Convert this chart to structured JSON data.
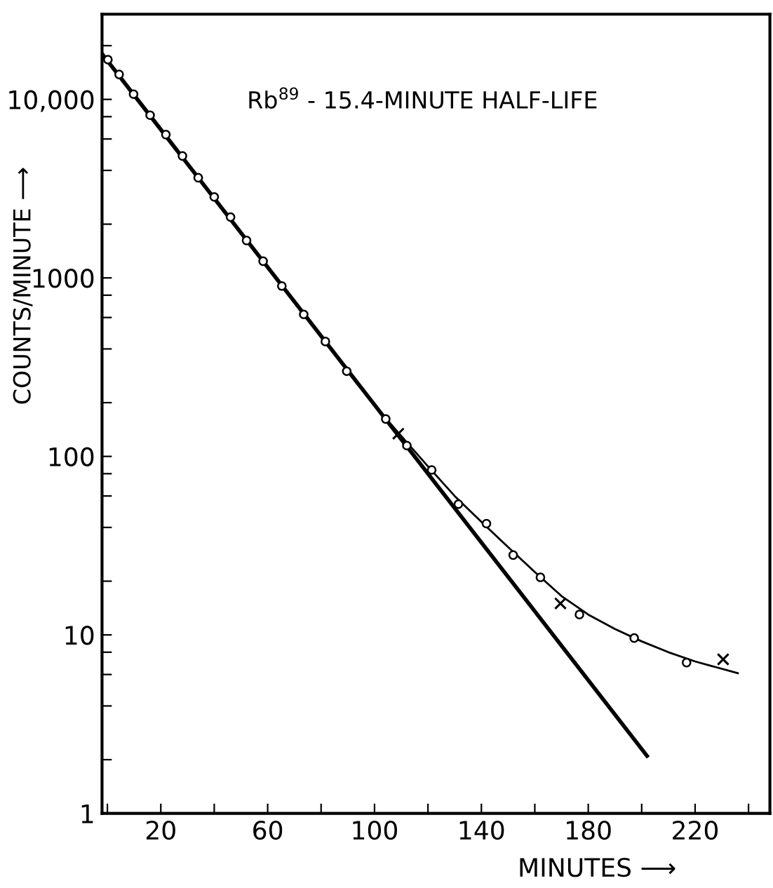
{
  "chart_data": {
    "type": "scatter",
    "title": "Rb$^{89}$ - 15.4-MINUTE HALF-LIFE",
    "xlabel": "MINUTES ⟶",
    "ylabel": "COUNTS/MINUTE ⟶",
    "log": "y",
    "grid": false,
    "xlim": [
      -2,
      248
    ],
    "xticks": [
      {
        "value": 0,
        "label": null
      },
      20,
      {
        "value": 40,
        "label": null
      },
      60,
      {
        "value": 80,
        "label": null
      },
      100,
      {
        "value": 120,
        "label": null
      },
      140,
      {
        "value": 160,
        "label": null
      },
      180,
      {
        "value": 200,
        "label": null
      },
      220,
      {
        "value": 240,
        "label": null
      }
    ],
    "ylim": [
      1,
      30000
    ],
    "yticks": [
      1,
      {
        "value": 2,
        "label": null
      },
      {
        "value": 4,
        "label": null
      },
      {
        "value": 6,
        "label": null
      },
      {
        "value": 8,
        "label": null
      },
      10,
      {
        "value": 20,
        "label": null
      },
      {
        "value": 40,
        "label": null
      },
      {
        "value": 60,
        "label": null
      },
      {
        "value": 80,
        "label": null
      },
      100,
      {
        "value": 200,
        "label": null
      },
      {
        "value": 400,
        "label": null
      },
      {
        "value": 600,
        "label": null
      },
      {
        "value": 800,
        "label": null
      },
      1000,
      {
        "value": 2000,
        "label": null
      },
      {
        "value": 4000,
        "label": null
      },
      {
        "value": 6000,
        "label": null
      },
      {
        "value": 8000,
        "label": null
      },
      {
        "value": 10000,
        "label": "10,000"
      },
      {
        "value": 20000,
        "label": null
      }
    ],
    "series": [
      {
        "type": "line",
        "color": "#000000",
        "line_style": "solid",
        "marker": "none",
        "x": [
          -2,
          202
        ],
        "values": [
          18000,
          2.1
        ]
      },
      {
        "type": "line",
        "color": "#000000",
        "line_style": "solid",
        "marker": "none",
        "x": [
          104,
          110,
          120,
          130,
          140,
          150,
          160,
          170,
          180,
          190,
          200,
          210,
          220,
          236
        ],
        "values": [
          165,
          130,
          88,
          60,
          43,
          31,
          22.5,
          16.5,
          13,
          10.8,
          9.2,
          8,
          7.1,
          6.1
        ]
      },
      {
        "color": "#000000",
        "marker": "circle",
        "x": [
          0.2,
          4.4,
          9.8,
          16,
          21.9,
          28.1,
          34,
          40,
          46.1,
          52.1,
          58.3,
          65.3,
          73.5,
          81.6,
          89.6,
          104.2,
          112.1,
          121.4,
          131.4,
          141.9,
          151.9,
          162.1,
          176.7,
          197.2,
          216.8
        ],
        "values": [
          16700,
          13800,
          10700,
          8150,
          6350,
          4820,
          3640,
          2840,
          2190,
          1620,
          1240,
          900,
          624,
          440,
          300,
          162,
          115,
          84,
          54,
          42,
          28,
          21,
          13,
          9.6,
          7.0
        ]
      },
      {
        "color": "#000000",
        "marker": "cross",
        "x": [
          108.9,
          169.6,
          230.5
        ],
        "values": [
          134,
          15,
          7.3
        ]
      }
    ]
  }
}
